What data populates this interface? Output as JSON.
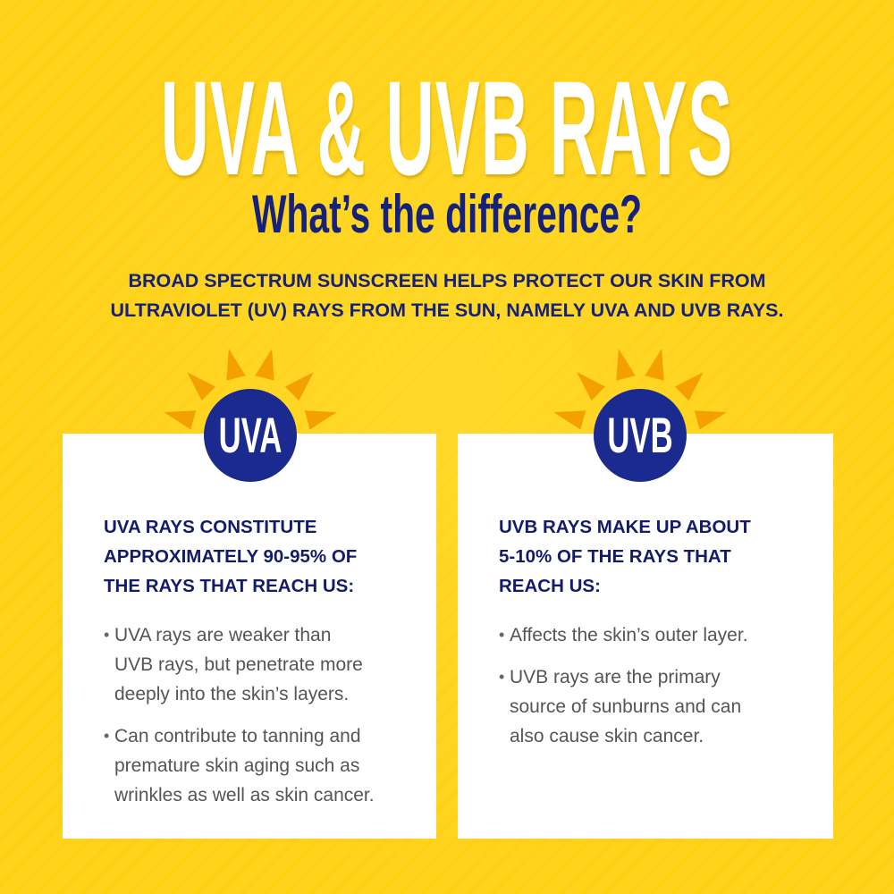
{
  "colors": {
    "background": "#FFD21C",
    "rays": "#F4A000",
    "navy": "#1B2A8E",
    "heading": "#131C6B",
    "body_text": "#555555",
    "card": "#FFFFFF"
  },
  "title": "UVA & UVB RAYS",
  "subtitle": "What’s the difference?",
  "intro": {
    "lines": [
      "BROAD SPECTRUM SUNSCREEN HELPS PROTECT OUR SKIN FROM",
      "ULTRAVIOLET (UV) RAYS FROM THE SUN, NAMELY UVA AND UVB RAYS."
    ]
  },
  "cards": [
    {
      "badge": "UVA",
      "icon": "sun-icon",
      "heading_lines": [
        "UVA RAYS CONSTITUTE",
        "APPROXIMATELY 90-95% OF",
        "THE RAYS THAT REACH US:"
      ],
      "bullets": [
        [
          "UVA rays are weaker than",
          "UVB rays, but penetrate more",
          "deeply into the skin’s layers."
        ],
        [
          "Can contribute to tanning and",
          "premature skin aging such as",
          "wrinkles as well as skin cancer."
        ]
      ]
    },
    {
      "badge": "UVB",
      "icon": "sun-icon",
      "heading_lines": [
        "UVB RAYS MAKE UP ABOUT",
        "5-10% OF THE RAYS THAT",
        "REACH US:"
      ],
      "bullets": [
        [
          "Affects the skin’s outer layer."
        ],
        [
          "UVB rays are the primary",
          "source of sunburns and can",
          "also cause skin cancer."
        ]
      ]
    }
  ]
}
